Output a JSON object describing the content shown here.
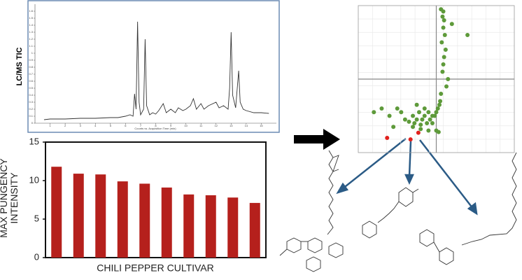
{
  "chart_data": [
    {
      "type": "line",
      "y_label": "LC/MS TIC",
      "x_label": "Counts vs. Acquisition Time (min)",
      "x": [
        0.6,
        1,
        2,
        3,
        4,
        5,
        5.5,
        6,
        6.3,
        6.5,
        6.6,
        6.7,
        6.8,
        6.9,
        7.0,
        7.2,
        7.3,
        7.4,
        7.6,
        7.8,
        8.0,
        8.2,
        8.5,
        8.7,
        9.0,
        9.3,
        9.5,
        9.8,
        10.0,
        10.3,
        10.5,
        10.7,
        11.0,
        11.2,
        11.5,
        12.0,
        12.2,
        12.5,
        12.8,
        12.9,
        13.0,
        13.1,
        13.3,
        13.5,
        13.6,
        13.8,
        14.0,
        14.5,
        15.0,
        15.5
      ],
      "values": [
        0.05,
        0.06,
        0.06,
        0.07,
        0.07,
        0.08,
        0.08,
        0.1,
        0.12,
        0.1,
        0.42,
        0.2,
        1.45,
        0.3,
        0.12,
        0.2,
        1.2,
        0.25,
        0.12,
        0.15,
        0.13,
        0.18,
        0.28,
        0.15,
        0.2,
        0.15,
        0.22,
        0.18,
        0.2,
        0.25,
        0.35,
        0.2,
        0.28,
        0.2,
        0.25,
        0.3,
        0.22,
        0.25,
        0.2,
        0.5,
        1.3,
        0.4,
        0.22,
        0.75,
        0.3,
        0.2,
        0.18,
        0.15,
        0.15,
        0.14
      ],
      "color": "#333333",
      "xlim": [
        0,
        16
      ],
      "xticks": [
        1,
        2,
        3,
        4,
        5,
        6,
        7,
        8,
        9,
        10,
        11,
        12,
        13,
        14,
        15
      ],
      "ylim": [
        0,
        1.7
      ],
      "yticks": [
        0,
        0.1,
        0.2,
        0.3,
        0.4,
        0.5,
        0.6,
        0.7,
        0.8,
        0.9,
        1,
        1.1,
        1.2,
        1.3,
        1.4,
        1.5,
        1.6
      ]
    },
    {
      "type": "bar",
      "y_label": "MAX PUNGENCY INTENSITY",
      "x_label": "CHILI PEPPER CULTIVAR",
      "categories": [
        null,
        null,
        null,
        null,
        null,
        null,
        null,
        null,
        null,
        null
      ],
      "values": [
        11.8,
        10.9,
        10.8,
        9.9,
        9.6,
        9.1,
        8.2,
        8.1,
        7.8,
        7.1
      ],
      "color": "#b5201c",
      "ylim": [
        0,
        15
      ],
      "yticks": [
        0,
        5,
        10,
        15
      ]
    },
    {
      "type": "scatter",
      "grid": true,
      "xlim": [
        -1,
        1
      ],
      "ylim": [
        -1,
        1
      ],
      "series": [
        {
          "color": "#5e9a3a",
          "x": [
            0.08,
            0.1,
            0.09,
            0.11,
            0.07,
            0.12,
            0.1,
            0.09,
            0.08,
            0.15,
            0.13,
            0.06,
            0.05,
            0.04,
            0.02,
            0,
            -0.02,
            -0.05,
            -0.08,
            -0.1,
            -0.12,
            -0.15,
            -0.18,
            -0.2,
            -0.22,
            -0.25,
            -0.28,
            -0.3,
            -0.35,
            -0.4,
            -0.45,
            -0.5,
            -0.55,
            -0.6,
            -0.7,
            -0.8,
            -0.1,
            -0.2,
            -0.3,
            -0.15,
            -0.05,
            0,
            0.03,
            -0.25,
            0.2,
            0.4,
            0.06,
            0.09
          ],
          "values": [
            0.85,
            0.8,
            0.7,
            0.6,
            0.5,
            0.4,
            0.3,
            0.2,
            0.1,
            0,
            -0.1,
            -0.2,
            -0.3,
            -0.35,
            -0.4,
            -0.45,
            -0.5,
            -0.5,
            -0.55,
            -0.45,
            -0.6,
            -0.5,
            -0.55,
            -0.62,
            -0.45,
            -0.55,
            -0.6,
            -0.5,
            -0.58,
            -0.55,
            -0.45,
            -0.4,
            -0.65,
            -0.5,
            -0.4,
            -0.45,
            -0.7,
            -0.68,
            -0.65,
            -0.4,
            -0.6,
            -0.7,
            -0.72,
            -0.35,
            0.75,
            0.6,
            0.95,
            0.92
          ]
        },
        {
          "color": "#e0201c",
          "x": [
            -0.63,
            -0.33,
            -0.23
          ],
          "values": [
            -0.8,
            -0.82,
            -0.73
          ]
        }
      ]
    }
  ]
}
